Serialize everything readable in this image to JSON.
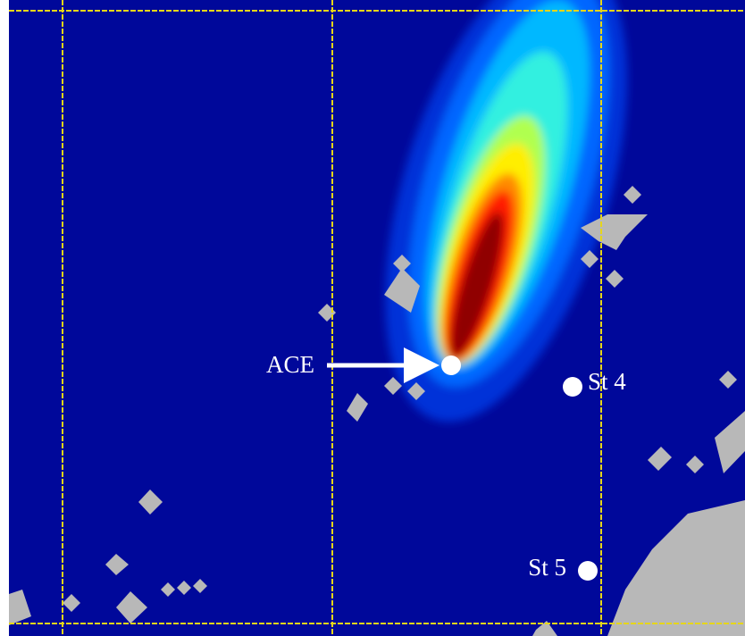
{
  "stations": [
    {
      "label": "ACE"
    },
    {
      "label": "St 4"
    },
    {
      "label": "St 5"
    }
  ]
}
